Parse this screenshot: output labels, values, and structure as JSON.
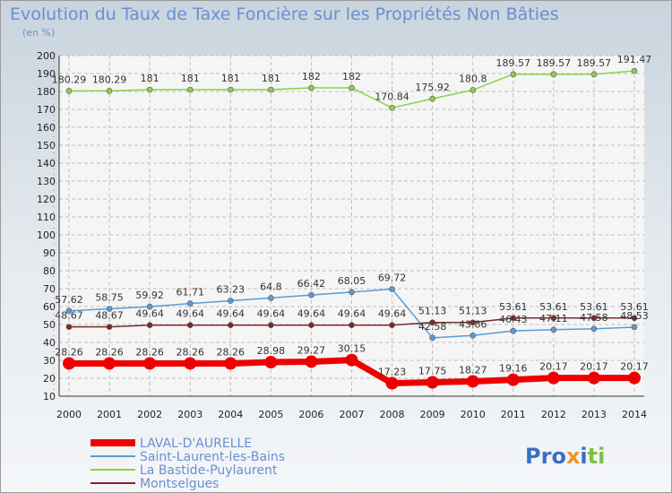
{
  "title": "Evolution du Taux de Taxe Foncière sur les Propriétés Non Bâties",
  "subtitle": "(en %)",
  "logo": {
    "text": "Proxiti",
    "colors": [
      "#3b6fc4",
      "#3b6fc4",
      "#3b6fc4",
      "#e8962a",
      "#3b6fc4",
      "#7cc242",
      "#7cc242"
    ]
  },
  "chart_data": {
    "type": "line",
    "title": "Evolution du Taux de Taxe Foncière sur les Propriétés Non Bâties",
    "ylabel": "(en %)",
    "xlabel": "",
    "ylim": [
      10,
      200
    ],
    "yticks": [
      10,
      20,
      30,
      40,
      50,
      60,
      70,
      80,
      90,
      100,
      110,
      120,
      130,
      140,
      150,
      160,
      170,
      180,
      190,
      200
    ],
    "grid": true,
    "legend": "bottom-left",
    "x": [
      "2000",
      "2001",
      "2002",
      "2003",
      "2004",
      "2005",
      "2006",
      "2007",
      "2008",
      "2009",
      "2010",
      "2011",
      "2012",
      "2013",
      "2014"
    ],
    "series": [
      {
        "name": "LAVAL-D'AURELLE",
        "color": "#ee0000",
        "width": 7,
        "marker": 7,
        "values": [
          28.26,
          28.26,
          28.26,
          28.26,
          28.26,
          28.98,
          29.27,
          30.15,
          17.23,
          17.75,
          18.27,
          19.16,
          20.17,
          20.17,
          20.17
        ],
        "labels": [
          "28.26",
          "28.26",
          "28.26",
          "28.26",
          "28.26",
          "28.98",
          "29.27",
          "30.15",
          "17.23",
          "17.75",
          "18.27",
          "19.16",
          "20.17",
          "20.17",
          "20.17"
        ]
      },
      {
        "name": "Saint-Laurent-les-Bains",
        "color": "#5b9bd5",
        "width": 1.5,
        "marker": 3,
        "values": [
          57.62,
          58.75,
          59.92,
          61.71,
          63.23,
          64.8,
          66.42,
          68.05,
          69.72,
          42.58,
          43.86,
          46.43,
          47.11,
          47.58,
          48.53
        ],
        "labels": [
          "57.62",
          "58.75",
          "59.92",
          "61.71",
          "63.23",
          "64.8",
          "66.42",
          "68.05",
          "69.72",
          "42.58",
          "43.86",
          "46.43",
          "47.11",
          "47.58",
          "48.53"
        ]
      },
      {
        "name": "La Bastide-Puylaurent",
        "color": "#8fcf4a",
        "width": 1.5,
        "marker": 3,
        "values": [
          180.29,
          180.29,
          181,
          181,
          181,
          181,
          182,
          182,
          170.84,
          175.92,
          180.8,
          189.57,
          189.57,
          189.57,
          191.47
        ],
        "labels": [
          "180.29",
          "180.29",
          "181",
          "181",
          "181",
          "181",
          "182",
          "182",
          "170.84",
          "175.92",
          "180.8",
          "189.57",
          "189.57",
          "189.57",
          "191.47"
        ]
      },
      {
        "name": "Montselgues",
        "color": "#7a2a2a",
        "width": 1.5,
        "marker": 3,
        "values": [
          48.67,
          48.67,
          49.64,
          49.64,
          49.64,
          49.64,
          49.64,
          49.64,
          49.64,
          51.13,
          51.13,
          53.61,
          53.61,
          53.61,
          53.61
        ],
        "labels": [
          "48.67",
          "48.67",
          "49.64",
          "49.64",
          "49.64",
          "49.64",
          "49.64",
          "49.64",
          "49.64",
          "51.13",
          "51.13",
          "53.61",
          "53.61",
          "53.61",
          "53.61"
        ]
      }
    ]
  }
}
